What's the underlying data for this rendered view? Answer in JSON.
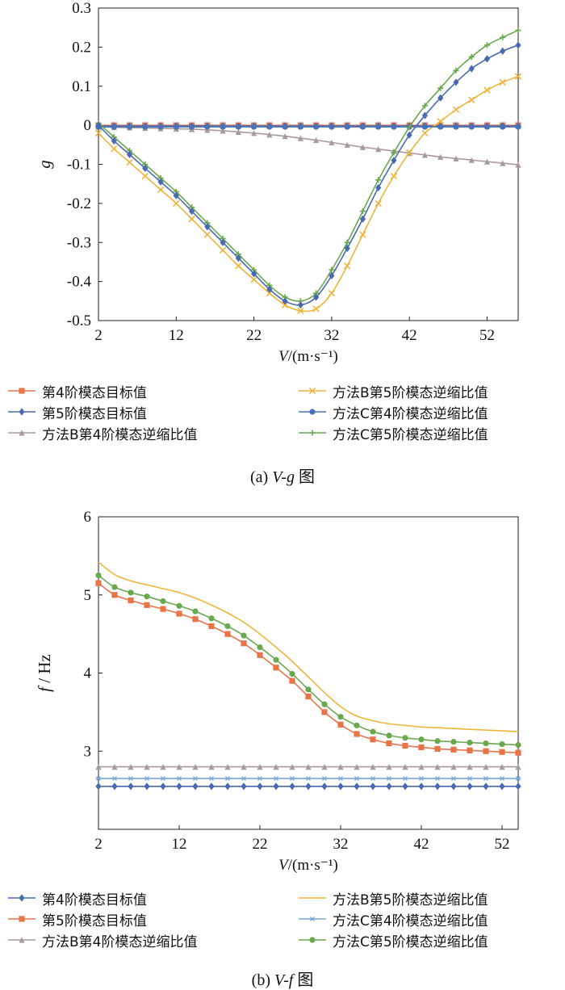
{
  "chart_data": [
    {
      "type": "line",
      "caption_prefix": "(a) ",
      "caption_var": "V-g",
      "caption_suffix": " 图",
      "xlabel_var": "V",
      "xlabel_unit": "/(m·s⁻¹)",
      "ylabel": "g",
      "xlim": [
        2,
        56
      ],
      "ylim": [
        -0.5,
        0.3
      ],
      "xticks": [
        2,
        12,
        22,
        32,
        42,
        52
      ],
      "yticks": [
        -0.5,
        -0.4,
        -0.3,
        -0.2,
        -0.1,
        0,
        0.1,
        0.2,
        0.3
      ],
      "ytick_labels": [
        "-0.5",
        "-0.4",
        "-0.3",
        "-0.2",
        "-0.1",
        "0",
        "0.1",
        "0.2",
        "0.3"
      ],
      "series": [
        {
          "name": "第4阶模态目标值",
          "color": "#e8744a",
          "marker": "square",
          "x": [
            2,
            4,
            6,
            8,
            10,
            12,
            14,
            16,
            18,
            20,
            22,
            24,
            26,
            28,
            30,
            32,
            34,
            36,
            38,
            40,
            42,
            44,
            46,
            48,
            50,
            52,
            54,
            56
          ],
          "y": [
            0,
            0,
            0,
            0,
            0,
            0,
            0,
            0,
            0,
            0,
            0,
            0,
            0,
            0,
            0,
            0,
            0,
            0,
            0,
            0,
            0,
            0,
            0,
            0,
            0,
            0,
            0,
            0
          ]
        },
        {
          "name": "第5阶模态目标值",
          "color": "#4a6ab0",
          "marker": "diamond",
          "x": [
            2,
            4,
            6,
            8,
            10,
            12,
            14,
            16,
            18,
            20,
            22,
            24,
            26,
            28,
            30,
            32,
            34,
            36,
            38,
            40,
            42,
            44,
            46,
            48,
            50,
            52,
            54,
            56
          ],
          "y": [
            -0.002,
            -0.002,
            -0.002,
            -0.002,
            -0.002,
            -0.002,
            -0.002,
            -0.002,
            -0.002,
            -0.002,
            -0.002,
            -0.002,
            -0.002,
            -0.002,
            -0.002,
            -0.002,
            -0.002,
            -0.002,
            -0.002,
            -0.002,
            -0.002,
            -0.002,
            -0.002,
            -0.002,
            -0.002,
            -0.002,
            -0.002,
            -0.002
          ]
        },
        {
          "name": "方法B第4阶模态逆缩比值",
          "color": "#a89a9c",
          "marker": "triangle",
          "x": [
            2,
            4,
            6,
            8,
            10,
            12,
            14,
            16,
            18,
            20,
            22,
            24,
            26,
            28,
            30,
            32,
            34,
            36,
            38,
            40,
            42,
            44,
            46,
            48,
            50,
            52,
            54,
            56
          ],
          "y": [
            -0.004,
            -0.005,
            -0.006,
            -0.007,
            -0.008,
            -0.009,
            -0.01,
            -0.012,
            -0.014,
            -0.017,
            -0.02,
            -0.024,
            -0.028,
            -0.033,
            -0.038,
            -0.044,
            -0.05,
            -0.056,
            -0.061,
            -0.066,
            -0.071,
            -0.076,
            -0.081,
            -0.085,
            -0.089,
            -0.093,
            -0.097,
            -0.101
          ]
        },
        {
          "name": "方法B第5阶模态逆缩比值",
          "color": "#f0b43c",
          "marker": "x",
          "x": [
            2,
            4,
            6,
            8,
            10,
            12,
            14,
            16,
            18,
            20,
            22,
            24,
            26,
            28,
            30,
            32,
            34,
            36,
            38,
            40,
            42,
            44,
            46,
            48,
            50,
            52,
            54,
            56
          ],
          "y": [
            -0.02,
            -0.06,
            -0.095,
            -0.13,
            -0.165,
            -0.2,
            -0.24,
            -0.28,
            -0.32,
            -0.36,
            -0.395,
            -0.43,
            -0.46,
            -0.475,
            -0.47,
            -0.43,
            -0.36,
            -0.28,
            -0.2,
            -0.13,
            -0.07,
            -0.02,
            0.01,
            0.04,
            0.065,
            0.09,
            0.11,
            0.125
          ]
        },
        {
          "name": "方法C第4阶模态逆缩比值",
          "color": "#4a72b8",
          "marker": "circle",
          "x": [
            2,
            4,
            6,
            8,
            10,
            12,
            14,
            16,
            18,
            20,
            22,
            24,
            26,
            28,
            30,
            32,
            34,
            36,
            38,
            40,
            42,
            44,
            46,
            48,
            50,
            52,
            54,
            56
          ],
          "y": [
            -0.004,
            -0.004,
            -0.004,
            -0.004,
            -0.004,
            -0.004,
            -0.004,
            -0.004,
            -0.004,
            -0.004,
            -0.004,
            -0.004,
            -0.004,
            -0.004,
            -0.004,
            -0.004,
            -0.004,
            -0.004,
            -0.004,
            -0.004,
            -0.004,
            -0.004,
            -0.004,
            -0.004,
            -0.004,
            -0.004,
            -0.004,
            -0.004
          ]
        },
        {
          "name": "方法C第5阶模态逆缩比值",
          "color": "#6aa84f",
          "marker": "plus",
          "x": [
            2,
            4,
            6,
            8,
            10,
            12,
            14,
            16,
            18,
            20,
            22,
            24,
            26,
            28,
            30,
            32,
            34,
            36,
            38,
            40,
            42,
            44,
            46,
            48,
            50,
            52,
            54,
            56
          ],
          "y": [
            0.005,
            -0.03,
            -0.065,
            -0.1,
            -0.135,
            -0.17,
            -0.21,
            -0.25,
            -0.29,
            -0.33,
            -0.37,
            -0.41,
            -0.44,
            -0.45,
            -0.43,
            -0.37,
            -0.3,
            -0.22,
            -0.14,
            -0.07,
            -0.005,
            0.05,
            0.095,
            0.14,
            0.175,
            0.205,
            0.225,
            0.243
          ]
        }
      ],
      "extra_series_lines": [
        {
          "color": "#4a6ab0",
          "marker": "diamond",
          "x": [
            2,
            4,
            6,
            8,
            10,
            12,
            14,
            16,
            18,
            20,
            22,
            24,
            26,
            28,
            30,
            32,
            34,
            36,
            38,
            40,
            42,
            44,
            46,
            48,
            50,
            52,
            54,
            56
          ],
          "y": [
            0.0,
            -0.04,
            -0.075,
            -0.11,
            -0.145,
            -0.18,
            -0.22,
            -0.26,
            -0.3,
            -0.34,
            -0.38,
            -0.42,
            -0.45,
            -0.46,
            -0.44,
            -0.385,
            -0.315,
            -0.24,
            -0.16,
            -0.09,
            -0.025,
            0.025,
            0.07,
            0.11,
            0.145,
            0.17,
            0.19,
            0.205
          ]
        }
      ]
    },
    {
      "type": "line",
      "caption_prefix": "(b) ",
      "caption_var": "V-f",
      "caption_suffix": " 图",
      "xlabel_var": "V",
      "xlabel_unit": "/(m·s⁻¹)",
      "ylabel_var": "f",
      "ylabel_unit": " / Hz",
      "xlim": [
        2,
        54
      ],
      "ylim": [
        2,
        6
      ],
      "xticks": [
        2,
        12,
        22,
        32,
        42,
        52
      ],
      "yticks": [
        3,
        4,
        5,
        6
      ],
      "ytick_labels": [
        "3",
        "4",
        "5",
        "6"
      ],
      "series": [
        {
          "name": "第4阶模态目标值",
          "color": "#4a6ab0",
          "marker": "diamond",
          "x": [
            2,
            4,
            6,
            8,
            10,
            12,
            14,
            16,
            18,
            20,
            22,
            24,
            26,
            28,
            30,
            32,
            34,
            36,
            38,
            40,
            42,
            44,
            46,
            48,
            50,
            52,
            54
          ],
          "y": [
            2.55,
            2.55,
            2.55,
            2.55,
            2.55,
            2.55,
            2.55,
            2.55,
            2.55,
            2.55,
            2.55,
            2.55,
            2.55,
            2.55,
            2.55,
            2.55,
            2.55,
            2.55,
            2.55,
            2.55,
            2.55,
            2.55,
            2.55,
            2.55,
            2.55,
            2.55,
            2.55
          ]
        },
        {
          "name": "第5阶模态目标值",
          "color": "#e8744a",
          "marker": "square",
          "x": [
            2,
            4,
            6,
            8,
            10,
            12,
            14,
            16,
            18,
            20,
            22,
            24,
            26,
            28,
            30,
            32,
            34,
            36,
            38,
            40,
            42,
            44,
            46,
            48,
            50,
            52,
            54
          ],
          "y": [
            5.15,
            5.0,
            4.93,
            4.87,
            4.82,
            4.76,
            4.69,
            4.6,
            4.5,
            4.38,
            4.23,
            4.07,
            3.9,
            3.7,
            3.5,
            3.34,
            3.22,
            3.15,
            3.1,
            3.07,
            3.05,
            3.03,
            3.02,
            3.01,
            3.0,
            2.99,
            2.98
          ]
        },
        {
          "name": "方法B第4阶模态逆缩比值",
          "color": "#a89a9c",
          "marker": "triangle",
          "x": [
            2,
            4,
            6,
            8,
            10,
            12,
            14,
            16,
            18,
            20,
            22,
            24,
            26,
            28,
            30,
            32,
            34,
            36,
            38,
            40,
            42,
            44,
            46,
            48,
            50,
            52,
            54
          ],
          "y": [
            2.8,
            2.8,
            2.8,
            2.8,
            2.8,
            2.8,
            2.8,
            2.8,
            2.8,
            2.8,
            2.8,
            2.8,
            2.8,
            2.8,
            2.8,
            2.8,
            2.8,
            2.8,
            2.8,
            2.8,
            2.8,
            2.8,
            2.8,
            2.8,
            2.8,
            2.8,
            2.8
          ]
        },
        {
          "name": "方法B第5阶模态逆缩比值",
          "color": "#f0b43c",
          "marker": "none",
          "x": [
            2,
            4,
            6,
            8,
            10,
            12,
            14,
            16,
            18,
            20,
            22,
            24,
            26,
            28,
            30,
            32,
            34,
            36,
            38,
            40,
            42,
            44,
            46,
            48,
            50,
            52,
            54
          ],
          "y": [
            5.42,
            5.26,
            5.18,
            5.13,
            5.08,
            5.03,
            4.96,
            4.87,
            4.77,
            4.65,
            4.5,
            4.33,
            4.15,
            3.95,
            3.75,
            3.57,
            3.45,
            3.39,
            3.35,
            3.33,
            3.31,
            3.3,
            3.29,
            3.28,
            3.27,
            3.26,
            3.25
          ]
        },
        {
          "name": "方法C第4阶模态逆缩比值",
          "color": "#7aa6d6",
          "marker": "star",
          "x": [
            2,
            4,
            6,
            8,
            10,
            12,
            14,
            16,
            18,
            20,
            22,
            24,
            26,
            28,
            30,
            32,
            34,
            36,
            38,
            40,
            42,
            44,
            46,
            48,
            50,
            52,
            54
          ],
          "y": [
            2.65,
            2.65,
            2.65,
            2.65,
            2.65,
            2.65,
            2.65,
            2.65,
            2.65,
            2.65,
            2.65,
            2.65,
            2.65,
            2.65,
            2.65,
            2.65,
            2.65,
            2.65,
            2.65,
            2.65,
            2.65,
            2.65,
            2.65,
            2.65,
            2.65,
            2.65,
            2.65
          ]
        },
        {
          "name": "方法C第5阶模态逆缩比值",
          "color": "#6aa84f",
          "marker": "circle",
          "x": [
            2,
            4,
            6,
            8,
            10,
            12,
            14,
            16,
            18,
            20,
            22,
            24,
            26,
            28,
            30,
            32,
            34,
            36,
            38,
            40,
            42,
            44,
            46,
            48,
            50,
            52,
            54
          ],
          "y": [
            5.25,
            5.1,
            5.03,
            4.98,
            4.92,
            4.86,
            4.79,
            4.7,
            4.6,
            4.48,
            4.33,
            4.17,
            3.99,
            3.79,
            3.6,
            3.44,
            3.33,
            3.25,
            3.2,
            3.17,
            3.15,
            3.13,
            3.12,
            3.11,
            3.1,
            3.09,
            3.08
          ]
        }
      ]
    }
  ]
}
